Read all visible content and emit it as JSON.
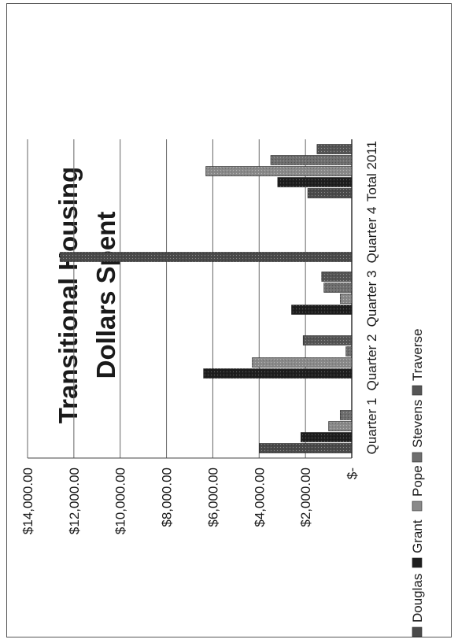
{
  "chart_data": {
    "type": "bar",
    "title_lines": [
      "Transitional Housing",
      "Dollars Spent"
    ],
    "categories": [
      "Quarter 1",
      "Quarter 2",
      "Quarter 3",
      "Quarter 4",
      "Total 2011"
    ],
    "y_ticks": [
      "$-",
      "$2,000.00",
      "$4,000.00",
      "$6,000.00",
      "$8,000.00",
      "$10,000.00",
      "$12,000.00",
      "$14,000.00"
    ],
    "ylim": [
      0,
      14000
    ],
    "grid": true,
    "legend_position": "bottom",
    "series": [
      {
        "name": "Douglas",
        "color": "#4a4a4a",
        "values": [
          4000,
          0,
          0,
          12600,
          1900
        ]
      },
      {
        "name": "Grant",
        "color": "#1e1e1e",
        "values": [
          2200,
          6400,
          2600,
          0,
          3200
        ]
      },
      {
        "name": "Pope",
        "color": "#8a8a8a",
        "values": [
          1000,
          4300,
          500,
          0,
          6300
        ]
      },
      {
        "name": "Stevens",
        "color": "#6e6e6e",
        "values": [
          500,
          250,
          1200,
          0,
          3500
        ]
      },
      {
        "name": "Traverse",
        "color": "#555555",
        "values": [
          0,
          2100,
          1300,
          0,
          1500
        ]
      }
    ]
  }
}
